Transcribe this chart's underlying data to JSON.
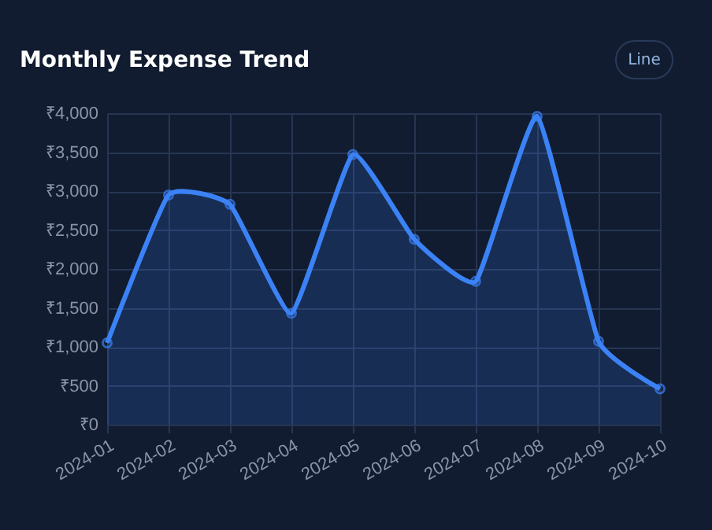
{
  "chart_data": {
    "type": "area",
    "title": "Monthly Expense Trend",
    "categories": [
      "2024-01",
      "2024-02",
      "2024-03",
      "2024-04",
      "2024-05",
      "2024-06",
      "2024-07",
      "2024-08",
      "2024-09",
      "2024-10"
    ],
    "series": [
      {
        "color": "#3b82f6",
        "values": [
          1050,
          2950,
          2830,
          1430,
          3470,
          2380,
          1840,
          3960,
          1070,
          460
        ]
      }
    ],
    "ylim": [
      0,
      4000
    ],
    "yticks": [
      {
        "value": 0,
        "label": "₹0"
      },
      {
        "value": 500,
        "label": "₹500"
      },
      {
        "value": 1000,
        "label": "₹1,000"
      },
      {
        "value": 1500,
        "label": "₹1,500"
      },
      {
        "value": 2000,
        "label": "₹2,000"
      },
      {
        "value": 2500,
        "label": "₹2,500"
      },
      {
        "value": 3000,
        "label": "₹3,000"
      },
      {
        "value": 3500,
        "label": "₹3,500"
      },
      {
        "value": 4000,
        "label": "₹4,000"
      }
    ],
    "grid": true,
    "marker": "circle",
    "line_style": "solid",
    "legend": false,
    "annotations": [
      "Line"
    ]
  }
}
